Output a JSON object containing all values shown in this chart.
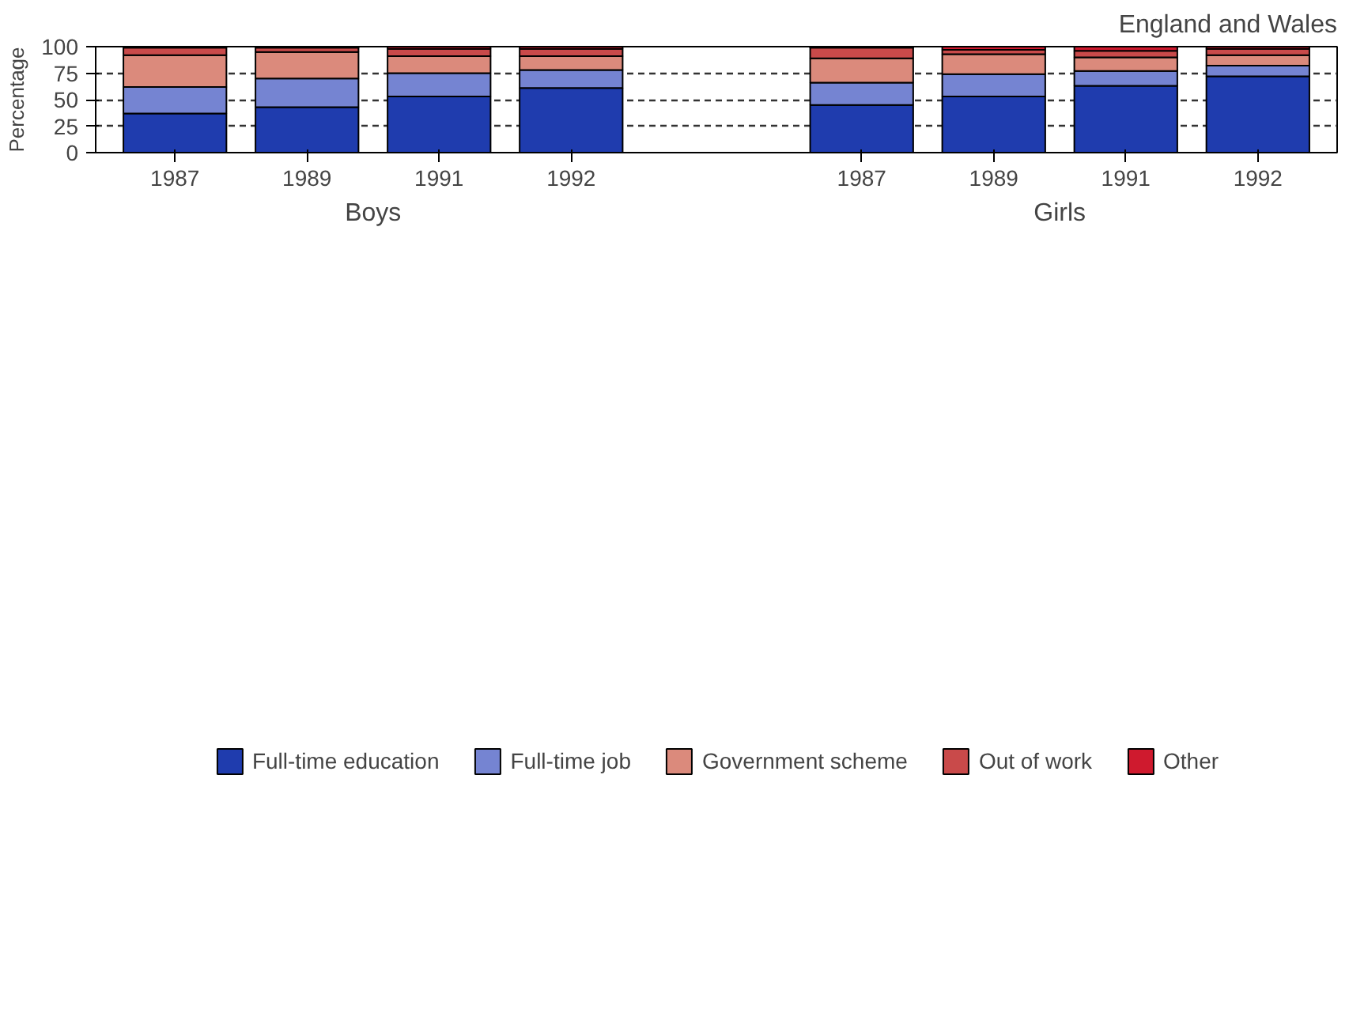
{
  "chart_data": {
    "type": "bar",
    "stacked": true,
    "ylabel": "Percentage",
    "subtitle": "England and Wales",
    "categories": [
      "1987",
      "1989",
      "1991",
      "1992",
      "1987",
      "1989",
      "1991",
      "1992"
    ],
    "annotations": [
      "Boys",
      "Girls"
    ],
    "series": [
      {
        "name": "Full-time education",
        "color": "#1f3cae",
        "values": [
          37,
          43,
          53,
          61,
          45,
          53,
          63,
          72
        ]
      },
      {
        "name": "Full-time job",
        "color": "#7584d2",
        "values": [
          25,
          27,
          22,
          17,
          21,
          21,
          14,
          10
        ]
      },
      {
        "name": "Government scheme",
        "color": "#db8a7c",
        "values": [
          30,
          25,
          16,
          13,
          23,
          19,
          13,
          10
        ]
      },
      {
        "name": "Out of work",
        "color": "#c94a4a",
        "values": [
          7,
          4,
          7,
          7,
          10,
          4,
          6,
          6
        ]
      },
      {
        "name": "Other",
        "color": "#cf1a2e",
        "values": [
          1,
          1,
          2,
          2,
          1,
          3,
          4,
          2
        ]
      }
    ],
    "ylim": [
      0,
      100
    ],
    "yticks": [
      0,
      25,
      50,
      75,
      100
    ],
    "grid": "y",
    "legend": "bottom"
  }
}
